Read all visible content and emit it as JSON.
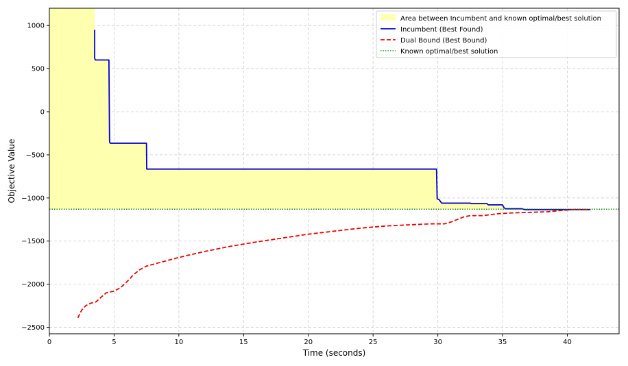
{
  "chart_data": {
    "type": "line",
    "title": "",
    "xlabel": "Time (seconds)",
    "ylabel": "Objective Value",
    "xlim": [
      0,
      44
    ],
    "ylim": [
      -2575,
      1200
    ],
    "x_ticks": [
      0,
      5,
      10,
      15,
      20,
      25,
      30,
      35,
      40
    ],
    "y_ticks": [
      1000,
      500,
      0,
      -500,
      -1000,
      -1500,
      -2000,
      -2500
    ],
    "x_tick_labels": [
      "0",
      "5",
      "10",
      "15",
      "20",
      "25",
      "30",
      "35",
      "40"
    ],
    "y_tick_labels": [
      "1000",
      "500",
      "0",
      "−500",
      "−1000",
      "−1500",
      "−2000",
      "−2500"
    ],
    "grid": true,
    "legend_position": "top-right",
    "known_optimal": -1130,
    "series": [
      {
        "name": "Incumbent (Best Found)",
        "color": "#0000cc",
        "style": "solid",
        "x": [
          3.5,
          3.5,
          3.55,
          4.6,
          4.65,
          4.7,
          7.5,
          7.52,
          29.9,
          29.95,
          30.1,
          30.3,
          32.5,
          32.6,
          33.8,
          33.9,
          35.0,
          35.1,
          35.2,
          36.5,
          36.7,
          41.8
        ],
        "y": [
          950,
          620,
          600,
          600,
          -350,
          -365,
          -365,
          -665,
          -665,
          -1010,
          -1020,
          -1060,
          -1060,
          -1065,
          -1065,
          -1080,
          -1080,
          -1110,
          -1125,
          -1125,
          -1135,
          -1135
        ]
      },
      {
        "name": "Dual Bound (Best Bound)",
        "color": "#ee0000",
        "style": "dashed",
        "x": [
          2.2,
          2.5,
          2.8,
          3.2,
          3.6,
          4.0,
          4.4,
          5.0,
          5.5,
          6.0,
          6.5,
          7.0,
          7.5,
          8.5,
          10.0,
          12.0,
          14.0,
          16.0,
          18.0,
          20.0,
          22.0,
          24.0,
          26.0,
          28.0,
          29.5,
          30.5,
          31.0,
          31.5,
          32.0,
          32.5,
          33.5,
          34.5,
          35.5,
          36.5,
          37.5,
          38.5,
          39.5,
          40.5,
          41.8
        ],
        "y": [
          -2390,
          -2300,
          -2250,
          -2220,
          -2205,
          -2150,
          -2100,
          -2080,
          -2040,
          -1970,
          -1890,
          -1830,
          -1790,
          -1750,
          -1690,
          -1620,
          -1560,
          -1510,
          -1465,
          -1420,
          -1385,
          -1350,
          -1325,
          -1310,
          -1300,
          -1300,
          -1280,
          -1250,
          -1220,
          -1205,
          -1205,
          -1185,
          -1175,
          -1170,
          -1165,
          -1160,
          -1145,
          -1135,
          -1135
        ]
      },
      {
        "name": "Known optimal/best solution",
        "color": "#007700",
        "style": "dotted",
        "x": [
          0,
          44
        ],
        "y": [
          -1130,
          -1130
        ]
      }
    ],
    "fill": {
      "name": "Area between Incumbent and known optimal/best solution",
      "color": "#ffffb0"
    }
  }
}
